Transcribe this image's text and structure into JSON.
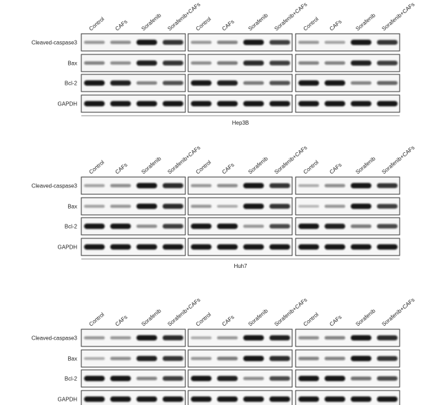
{
  "lanes": [
    "Control",
    "CAFs",
    "Sorafenib",
    "Sorafenib+CAFs"
  ],
  "proteins": [
    "Cleaved-caspase3",
    "Bax",
    "Bcl-2",
    "GAPDH"
  ],
  "band_color": "#111111",
  "panels": [
    {
      "cell_line": "Hep3B",
      "replicates": [
        [
          [
            0.3,
            0.35,
            0.95,
            0.8
          ],
          [
            0.4,
            0.35,
            0.9,
            0.8
          ],
          [
            0.95,
            0.9,
            0.4,
            0.65
          ],
          [
            0.95,
            0.95,
            0.95,
            0.95
          ]
        ],
        [
          [
            0.3,
            0.4,
            0.95,
            0.75
          ],
          [
            0.35,
            0.45,
            0.85,
            0.75
          ],
          [
            0.95,
            0.9,
            0.45,
            0.65
          ],
          [
            0.95,
            0.95,
            0.95,
            0.95
          ]
        ],
        [
          [
            0.3,
            0.25,
            0.95,
            0.8
          ],
          [
            0.4,
            0.4,
            0.9,
            0.75
          ],
          [
            0.95,
            0.95,
            0.4,
            0.55
          ],
          [
            0.95,
            0.95,
            0.95,
            0.95
          ]
        ]
      ]
    },
    {
      "cell_line": "Huh7",
      "replicates": [
        [
          [
            0.25,
            0.35,
            0.95,
            0.85
          ],
          [
            0.25,
            0.3,
            0.95,
            0.85
          ],
          [
            0.95,
            0.95,
            0.35,
            0.75
          ],
          [
            0.95,
            0.95,
            0.95,
            0.95
          ]
        ],
        [
          [
            0.3,
            0.35,
            0.95,
            0.8
          ],
          [
            0.3,
            0.2,
            0.95,
            0.8
          ],
          [
            0.95,
            0.95,
            0.3,
            0.7
          ],
          [
            0.95,
            0.95,
            0.95,
            0.95
          ]
        ],
        [
          [
            0.2,
            0.35,
            0.95,
            0.8
          ],
          [
            0.15,
            0.3,
            0.95,
            0.75
          ],
          [
            0.95,
            0.9,
            0.45,
            0.7
          ],
          [
            0.95,
            0.95,
            0.95,
            0.95
          ]
        ]
      ]
    },
    {
      "cell_line": "",
      "replicates": [
        [
          [
            0.3,
            0.3,
            0.95,
            0.85
          ],
          [
            0.2,
            0.35,
            0.9,
            0.8
          ],
          [
            0.95,
            0.95,
            0.4,
            0.75
          ],
          [
            0.95,
            0.95,
            0.95,
            0.95
          ]
        ],
        [
          [
            0.2,
            0.3,
            0.95,
            0.9
          ],
          [
            0.3,
            0.45,
            0.95,
            0.85
          ],
          [
            0.95,
            0.9,
            0.35,
            0.7
          ],
          [
            0.95,
            0.95,
            0.95,
            0.95
          ]
        ],
        [
          [
            0.35,
            0.4,
            0.95,
            0.85
          ],
          [
            0.4,
            0.4,
            0.95,
            0.8
          ],
          [
            0.95,
            0.95,
            0.5,
            0.7
          ],
          [
            0.95,
            0.95,
            0.95,
            0.95
          ]
        ]
      ]
    }
  ]
}
